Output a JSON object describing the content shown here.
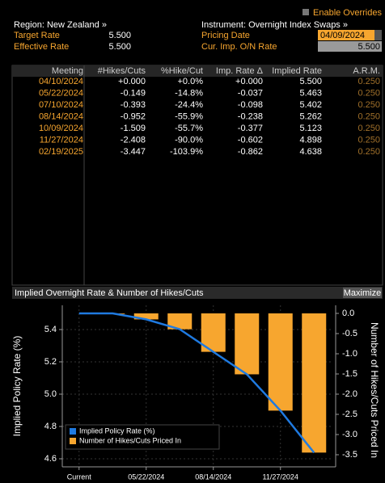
{
  "toolbar": {
    "enable_overrides": "Enable Overrides"
  },
  "header": {
    "region": "Region: New Zealand »",
    "target_rate_label": "Target Rate",
    "target_rate": "5.500",
    "effective_rate_label": "Effective Rate",
    "effective_rate": "5.500",
    "instrument": "Instrument: Overnight Index Swaps »",
    "pricing_date_label": "Pricing Date",
    "pricing_date": "04/09/2024",
    "cur_imp_label": "Cur. Imp. O/N Rate",
    "cur_imp": "5.500"
  },
  "table": {
    "columns": [
      "Meeting",
      "#Hikes/Cuts",
      "%Hike/Cut",
      "Imp. Rate Δ",
      "Implied Rate",
      "A.R.M."
    ],
    "rows": [
      [
        "04/10/2024",
        "+0.000",
        "+0.0%",
        "+0.000",
        "5.500",
        "0.250"
      ],
      [
        "05/22/2024",
        "-0.149",
        "-14.8%",
        "-0.037",
        "5.463",
        "0.250"
      ],
      [
        "07/10/2024",
        "-0.393",
        "-24.4%",
        "-0.098",
        "5.402",
        "0.250"
      ],
      [
        "08/14/2024",
        "-0.952",
        "-55.9%",
        "-0.238",
        "5.262",
        "0.250"
      ],
      [
        "10/09/2024",
        "-1.509",
        "-55.7%",
        "-0.377",
        "5.123",
        "0.250"
      ],
      [
        "11/27/2024",
        "-2.408",
        "-90.0%",
        "-0.602",
        "4.898",
        "0.250"
      ],
      [
        "02/19/2025",
        "-3.447",
        "-103.9%",
        "-0.862",
        "4.638",
        "0.250"
      ]
    ]
  },
  "chart_panel": {
    "maximize": "Maximize"
  },
  "chart_data": {
    "type": "bar-line",
    "title": "Implied Overnight Rate & Number of Hikes/Cuts",
    "y_label": "Implied Policy Rate (%)",
    "y2_label": "Number of Hikes/Cuts Priced In",
    "categories": [
      "Current",
      null,
      "05/22/2024",
      null,
      "08/14/2024",
      null,
      "11/27/2024",
      null
    ],
    "series": [
      {
        "name": "Implied Policy Rate (%)",
        "type": "line",
        "color": "#1f7ae0",
        "values": [
          5.5,
          5.5,
          5.463,
          5.402,
          5.262,
          5.123,
          4.898,
          4.638
        ]
      },
      {
        "name": "Number of Hikes/Cuts Priced In",
        "type": "bar",
        "axis": "y2",
        "color": "#f7a62f",
        "values": [
          null,
          0.0,
          -0.149,
          -0.393,
          -0.952,
          -1.509,
          -2.408,
          -3.447
        ]
      }
    ],
    "ylim": [
      4.55,
      5.55
    ],
    "yticks": [
      4.6,
      4.8,
      {
        "value": 5,
        "label": "5.0"
      },
      5.2,
      5.4
    ],
    "y2lim": [
      -3.8,
      0.2
    ],
    "y2ticks": [
      {
        "value": 0,
        "label": "0.0"
      },
      -0.5,
      {
        "value": -1,
        "label": "-1.0"
      },
      -1.5,
      {
        "value": -2,
        "label": "-2.0"
      },
      -2.5,
      {
        "value": -3,
        "label": "-3.0"
      },
      -3.5
    ],
    "grid": true,
    "legend": "lower-left"
  }
}
